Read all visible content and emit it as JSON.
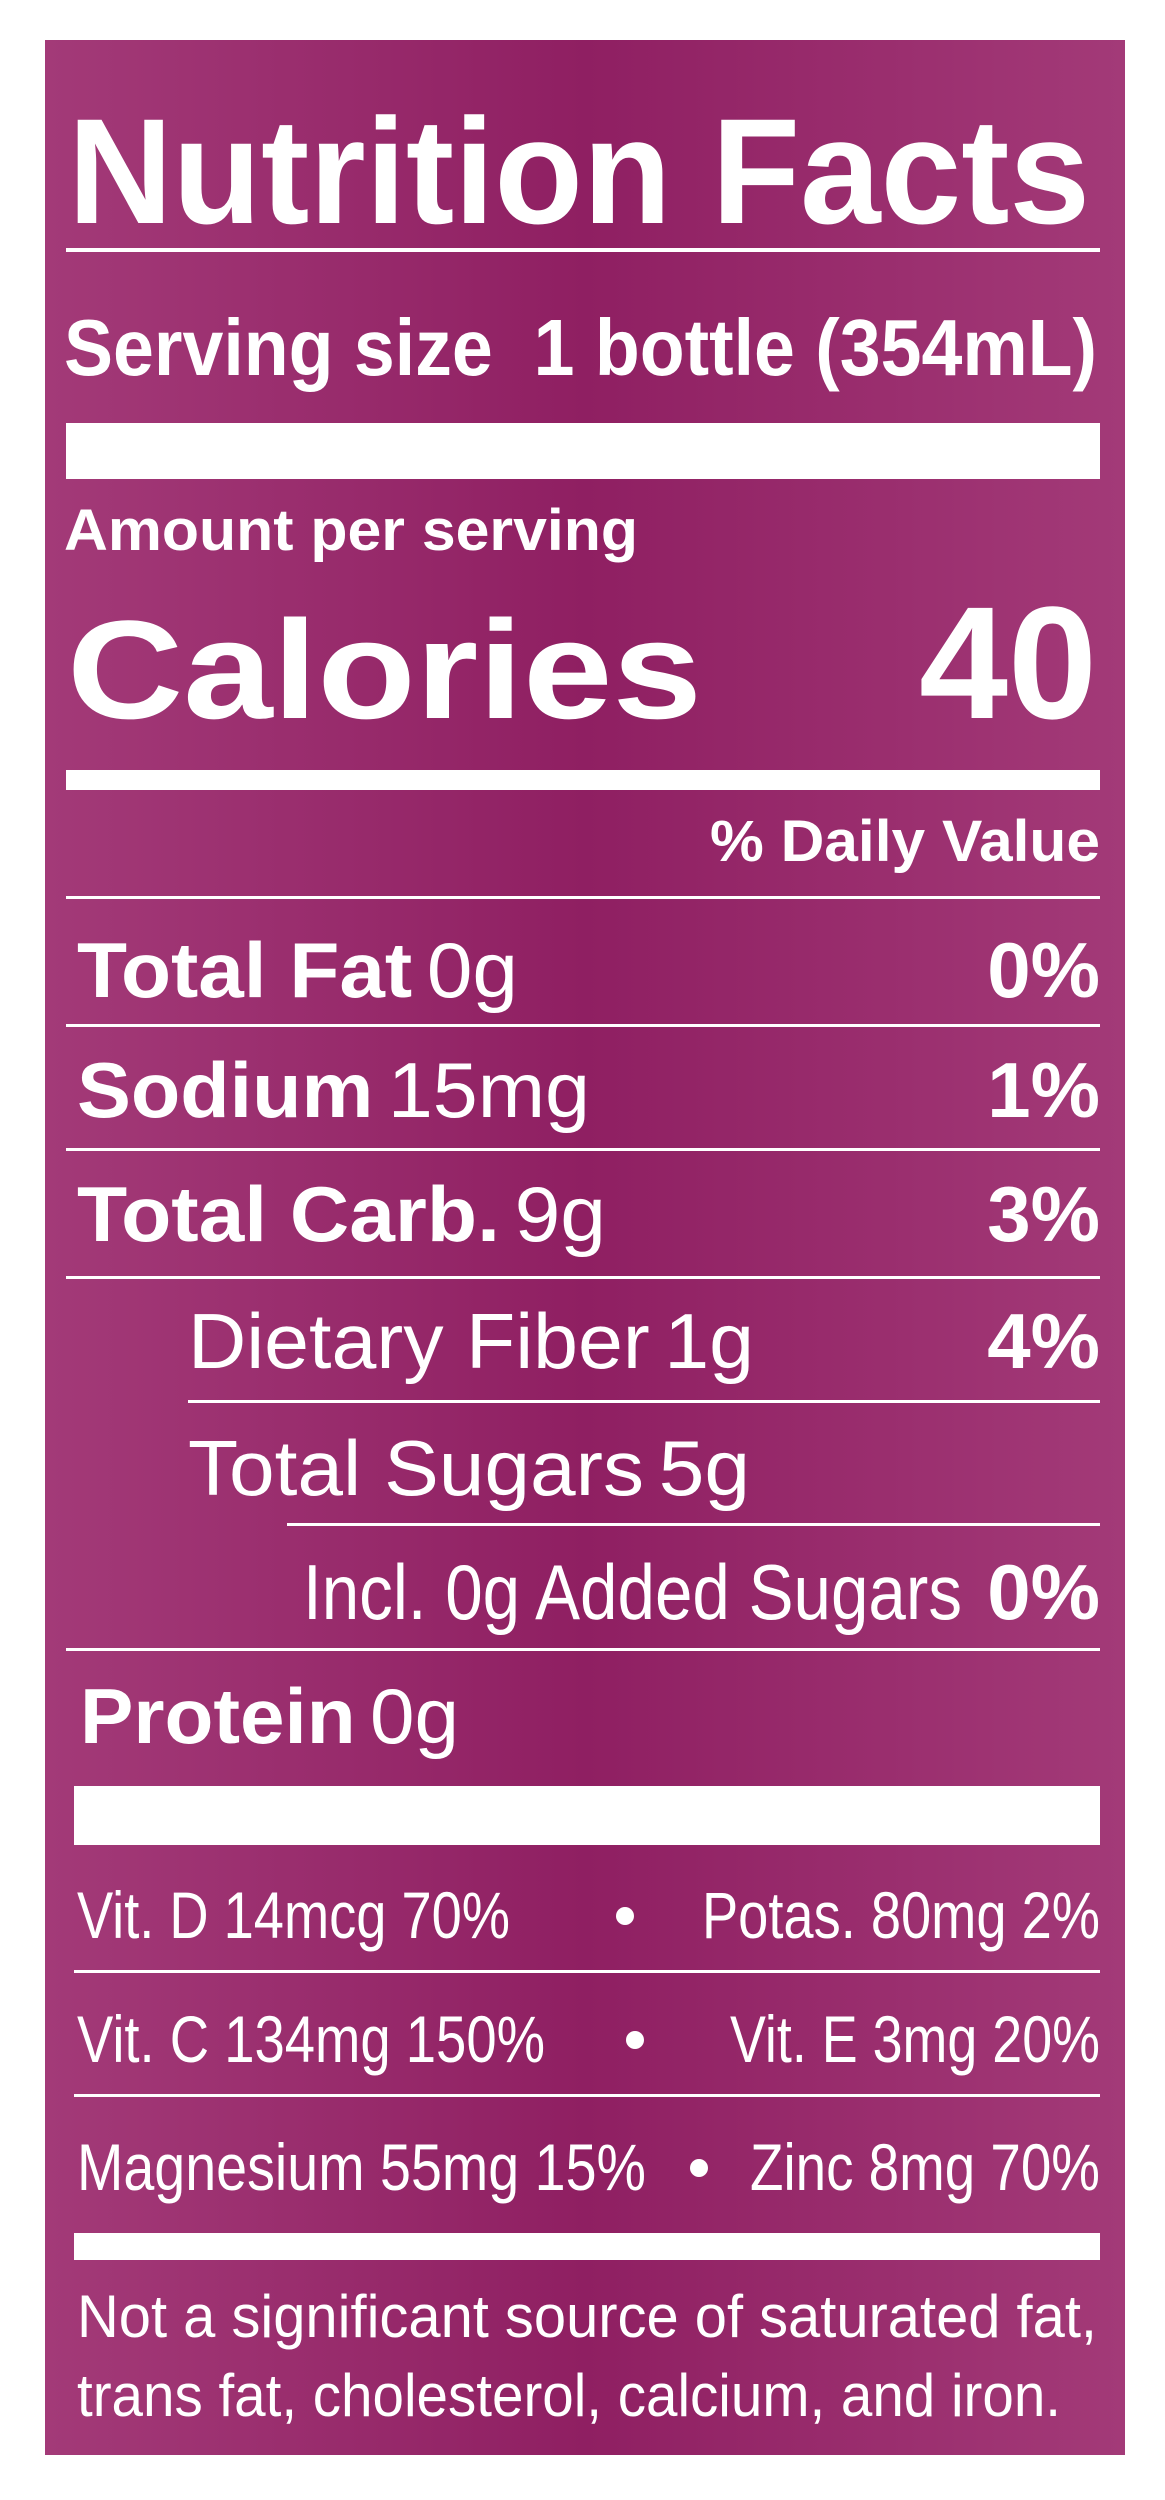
{
  "header": {
    "title": "Nutrition Facts",
    "serving_size": "Serving size  1 bottle (354mL)"
  },
  "calories": {
    "amount_per_serving": "Amount per serving",
    "label": "Calories",
    "value": "40"
  },
  "daily_value_header": "% Daily Value",
  "nutrients": [
    {
      "name": "Total Fat",
      "amount": "0g",
      "dv": "0%"
    },
    {
      "name": "Sodium",
      "amount": "15mg",
      "dv": "1%"
    },
    {
      "name": "Total Carb.",
      "amount": "9g",
      "dv": "3%"
    },
    {
      "name": "Dietary Fiber",
      "amount": "1g",
      "dv": "4%"
    },
    {
      "name": "Total Sugars",
      "amount": "5g"
    },
    {
      "name": "Incl. 0g Added Sugars",
      "dv": "0%"
    },
    {
      "name": "Protein",
      "amount": "0g"
    }
  ],
  "vitamins": [
    [
      "Vit. D 14mcg 70%",
      "Potas. 80mg 2%"
    ],
    [
      "Vit. C 134mg 150%",
      "Vit. E 3mg 20%"
    ],
    [
      "Magnesium 55mg 15%",
      "Zinc 8mg 70%"
    ]
  ],
  "footnote": [
    "Not a significant source of saturated fat,",
    "trans fat, cholesterol, calcium, and iron."
  ]
}
